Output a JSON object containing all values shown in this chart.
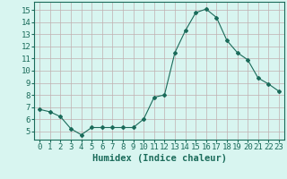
{
  "x": [
    0,
    1,
    2,
    3,
    4,
    5,
    6,
    7,
    8,
    9,
    10,
    11,
    12,
    13,
    14,
    15,
    16,
    17,
    18,
    19,
    20,
    21,
    22,
    23
  ],
  "y": [
    6.8,
    6.6,
    6.2,
    5.2,
    4.7,
    5.3,
    5.3,
    5.3,
    5.3,
    5.3,
    6.0,
    7.8,
    8.0,
    11.5,
    13.3,
    14.8,
    15.1,
    14.4,
    12.5,
    11.5,
    10.9,
    9.4,
    8.9,
    8.3
  ],
  "line_color": "#1a6b5a",
  "marker": "D",
  "marker_size": 2,
  "bg_color": "#d8f5f0",
  "grid_color": "#c0b0b0",
  "xlabel": "Humidex (Indice chaleur)",
  "xlabel_color": "#1a6b5a",
  "xlabel_fontsize": 7.5,
  "tick_fontsize": 6.5,
  "ylim": [
    4.3,
    15.7
  ],
  "yticks": [
    5,
    6,
    7,
    8,
    9,
    10,
    11,
    12,
    13,
    14,
    15
  ],
  "xlim": [
    -0.5,
    23.5
  ],
  "xticks": [
    0,
    1,
    2,
    3,
    4,
    5,
    6,
    7,
    8,
    9,
    10,
    11,
    12,
    13,
    14,
    15,
    16,
    17,
    18,
    19,
    20,
    21,
    22,
    23
  ]
}
